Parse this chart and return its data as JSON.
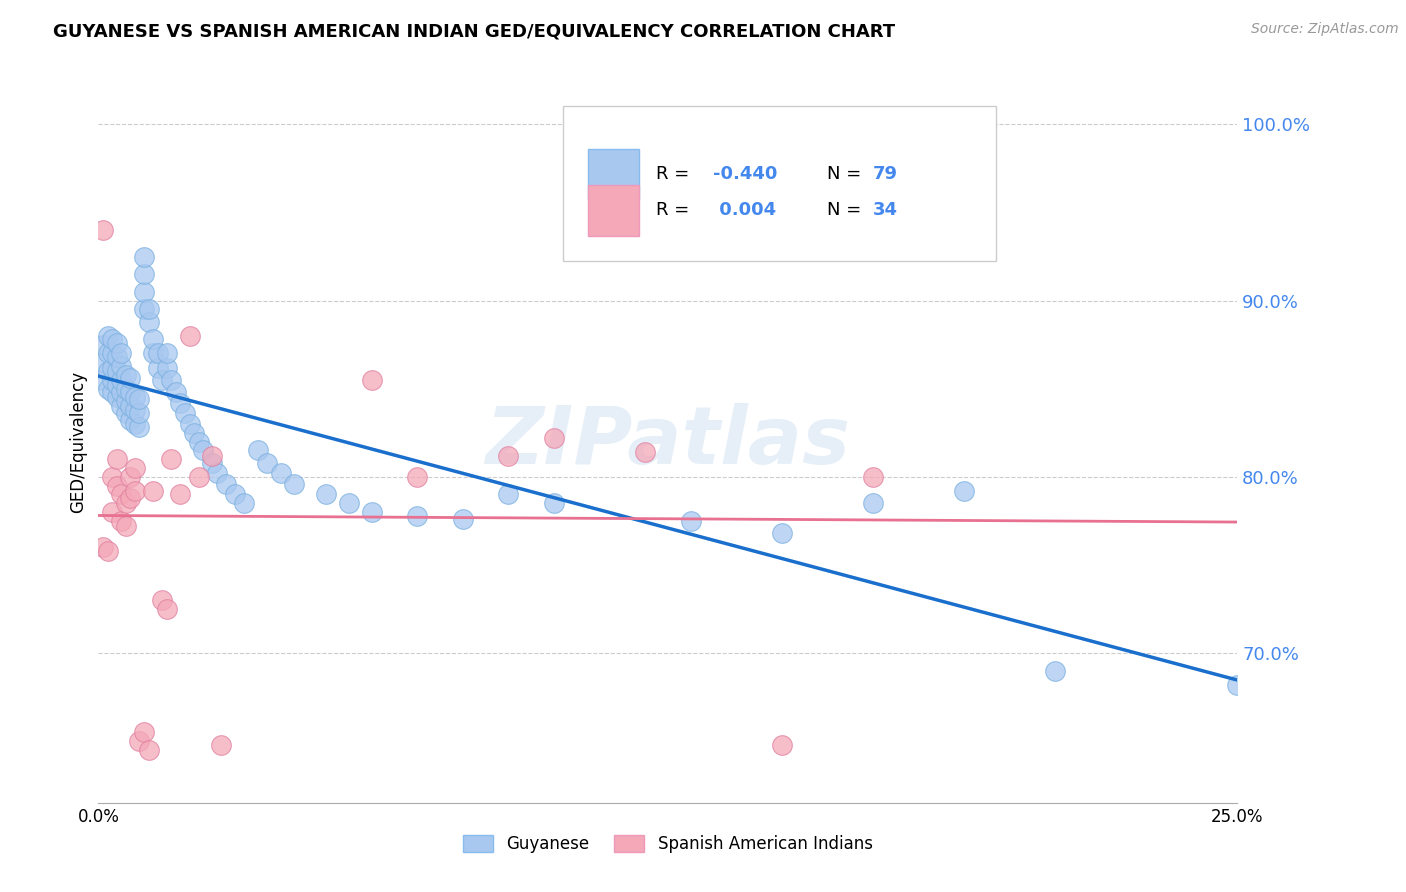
{
  "title": "GUYANESE VS SPANISH AMERICAN INDIAN GED/EQUIVALENCY CORRELATION CHART",
  "source": "Source: ZipAtlas.com",
  "ylabel": "GED/Equivalency",
  "watermark": "ZIPatlas",
  "guyanese_color": "#a8c8f0",
  "spanish_color": "#f4a8b8",
  "guyanese_line_color": "#1a6fcc",
  "spanish_line_color": "#e87090",
  "R_guyanese": "-0.440",
  "N_guyanese": "79",
  "R_spanish": "0.004",
  "N_spanish": "34",
  "xlim": [
    0.0,
    0.25
  ],
  "ylim": [
    0.615,
    1.025
  ],
  "yticks": [
    0.7,
    0.8,
    0.9,
    1.0
  ],
  "ytick_labels": [
    "70.0%",
    "80.0%",
    "90.0%",
    "100.0%"
  ],
  "guyanese_x": [
    0.001,
    0.001,
    0.001,
    0.002,
    0.002,
    0.002,
    0.002,
    0.003,
    0.003,
    0.003,
    0.003,
    0.003,
    0.004,
    0.004,
    0.004,
    0.004,
    0.004,
    0.005,
    0.005,
    0.005,
    0.005,
    0.005,
    0.006,
    0.006,
    0.006,
    0.006,
    0.007,
    0.007,
    0.007,
    0.007,
    0.008,
    0.008,
    0.008,
    0.009,
    0.009,
    0.009,
    0.01,
    0.01,
    0.01,
    0.01,
    0.011,
    0.011,
    0.012,
    0.012,
    0.013,
    0.013,
    0.014,
    0.015,
    0.015,
    0.016,
    0.017,
    0.018,
    0.019,
    0.02,
    0.021,
    0.022,
    0.023,
    0.025,
    0.026,
    0.028,
    0.03,
    0.032,
    0.035,
    0.037,
    0.04,
    0.043,
    0.05,
    0.055,
    0.06,
    0.07,
    0.08,
    0.09,
    0.1,
    0.13,
    0.15,
    0.17,
    0.19,
    0.21,
    0.25
  ],
  "guyanese_y": [
    0.855,
    0.865,
    0.875,
    0.85,
    0.86,
    0.87,
    0.88,
    0.848,
    0.855,
    0.862,
    0.87,
    0.878,
    0.845,
    0.852,
    0.86,
    0.868,
    0.876,
    0.84,
    0.848,
    0.855,
    0.863,
    0.87,
    0.836,
    0.843,
    0.85,
    0.858,
    0.832,
    0.84,
    0.848,
    0.856,
    0.83,
    0.838,
    0.845,
    0.828,
    0.836,
    0.844,
    0.895,
    0.905,
    0.915,
    0.925,
    0.888,
    0.895,
    0.87,
    0.878,
    0.862,
    0.87,
    0.855,
    0.862,
    0.87,
    0.855,
    0.848,
    0.842,
    0.836,
    0.83,
    0.825,
    0.82,
    0.815,
    0.808,
    0.802,
    0.796,
    0.79,
    0.785,
    0.815,
    0.808,
    0.802,
    0.796,
    0.79,
    0.785,
    0.78,
    0.778,
    0.776,
    0.79,
    0.785,
    0.775,
    0.768,
    0.785,
    0.792,
    0.69,
    0.682
  ],
  "spanish_x": [
    0.001,
    0.001,
    0.002,
    0.003,
    0.003,
    0.004,
    0.004,
    0.005,
    0.005,
    0.006,
    0.006,
    0.007,
    0.007,
    0.008,
    0.008,
    0.009,
    0.01,
    0.011,
    0.012,
    0.014,
    0.015,
    0.016,
    0.018,
    0.02,
    0.022,
    0.025,
    0.027,
    0.06,
    0.07,
    0.09,
    0.1,
    0.12,
    0.15,
    0.17
  ],
  "spanish_y": [
    0.94,
    0.76,
    0.758,
    0.78,
    0.8,
    0.795,
    0.81,
    0.775,
    0.79,
    0.772,
    0.785,
    0.788,
    0.8,
    0.792,
    0.805,
    0.65,
    0.655,
    0.645,
    0.792,
    0.73,
    0.725,
    0.81,
    0.79,
    0.88,
    0.8,
    0.812,
    0.648,
    0.855,
    0.8,
    0.812,
    0.822,
    0.814,
    0.648,
    0.8
  ],
  "background_color": "#ffffff",
  "grid_color": "#cccccc"
}
